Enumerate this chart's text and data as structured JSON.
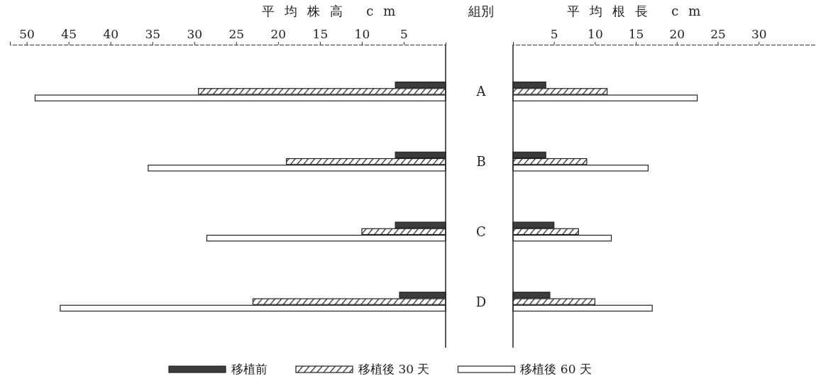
{
  "chart_data": [
    {
      "type": "bar",
      "orientation": "horizontal",
      "xlabel": "平均株高 cm",
      "ylabel": "組別",
      "categories": [
        "A",
        "B",
        "C",
        "D"
      ],
      "xlim": [
        52,
        0
      ],
      "xticks": [
        50,
        45,
        40,
        35,
        30,
        25,
        20,
        15,
        10,
        5
      ],
      "legend": "bottom",
      "series": [
        {
          "name": "移植前",
          "color": "#3c3c3c",
          "values": [
            6,
            6,
            6,
            5.5
          ]
        },
        {
          "name": "移植後 30 天",
          "color": "#222222",
          "values": [
            29.5,
            19,
            10,
            23
          ]
        },
        {
          "name": "移植後 60 天",
          "color": "#ffffff",
          "values": [
            49,
            35.5,
            28.5,
            46
          ]
        }
      ]
    },
    {
      "type": "bar",
      "orientation": "horizontal",
      "xlabel": "平均根長 cm",
      "categories": [
        null,
        null,
        null,
        null
      ],
      "xlim": [
        0,
        37
      ],
      "xticks": [
        5,
        10,
        15,
        20,
        25,
        30
      ],
      "tick_labels": "x",
      "series": [
        {
          "color": "#3c3c3c",
          "values": [
            4,
            4,
            5,
            4.5
          ]
        },
        {
          "color": "#222222",
          "values": [
            11.5,
            9,
            8,
            10
          ]
        },
        {
          "color": "#ffffff",
          "values": [
            22.5,
            16.5,
            12,
            17
          ]
        }
      ]
    }
  ]
}
